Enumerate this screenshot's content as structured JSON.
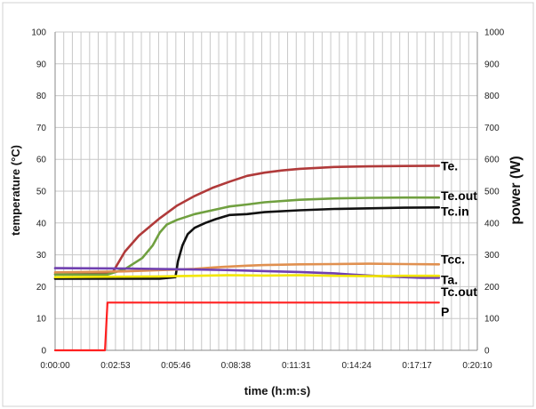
{
  "chart_data": {
    "type": "line",
    "xlabel": "time (h:m:s)",
    "ylabel": "temperature (°C)",
    "y2label": "power (W)",
    "xlim": [
      0,
      1210
    ],
    "ylim": [
      0,
      100
    ],
    "y2lim": [
      0,
      1000
    ],
    "x_tick_values": [
      0,
      173,
      346,
      518,
      691,
      864,
      1037,
      1210
    ],
    "x_tick_labels": [
      "0:00:00",
      "0:02:53",
      "0:05:46",
      "0:08:38",
      "0:11:31",
      "0:14:24",
      "0:17:17",
      "0:20:10"
    ],
    "y_ticks": [
      0,
      10,
      20,
      30,
      40,
      50,
      60,
      70,
      80,
      90,
      100
    ],
    "y2_ticks": [
      0,
      100,
      200,
      300,
      400,
      500,
      600,
      700,
      800,
      900,
      1000
    ],
    "grid": true,
    "series": [
      {
        "name": "Te.",
        "color": "#b03a3a",
        "axis": "left",
        "x": [
          0,
          165,
          200,
          240,
          300,
          350,
          400,
          450,
          500,
          550,
          600,
          650,
          700,
          800,
          900,
          1000,
          1100
        ],
        "y": [
          24,
          24.5,
          31,
          36,
          41.5,
          45.5,
          48.5,
          51,
          53,
          54.8,
          55.8,
          56.5,
          57,
          57.6,
          57.8,
          57.9,
          58
        ]
      },
      {
        "name": "Te.out",
        "color": "#70a040",
        "axis": "left",
        "x": [
          0,
          150,
          200,
          250,
          280,
          300,
          320,
          350,
          400,
          450,
          500,
          550,
          600,
          700,
          800,
          900,
          1000,
          1100
        ],
        "y": [
          23.8,
          23.8,
          25.5,
          29,
          33,
          37,
          39.5,
          41,
          42.8,
          44,
          45.2,
          45.8,
          46.5,
          47.3,
          47.7,
          47.9,
          48,
          48
        ]
      },
      {
        "name": "Tc.in",
        "color": "#111111",
        "axis": "left",
        "x": [
          0,
          300,
          345,
          352,
          365,
          380,
          400,
          430,
          460,
          500,
          550,
          600,
          700,
          800,
          900,
          1000,
          1100
        ],
        "y": [
          22.5,
          22.5,
          23,
          28,
          33,
          36.5,
          38.5,
          40,
          41.2,
          42.5,
          42.8,
          43.4,
          44,
          44.4,
          44.6,
          44.8,
          44.9
        ]
      },
      {
        "name": "Tcc.",
        "color": "#e09050",
        "axis": "left",
        "x": [
          0,
          200,
          300,
          400,
          450,
          500,
          550,
          600,
          700,
          800,
          900,
          1000,
          1100
        ],
        "y": [
          24.5,
          24.8,
          25.2,
          25.6,
          26,
          26.3,
          26.6,
          26.8,
          27,
          27.1,
          27.2,
          27.1,
          27
        ]
      },
      {
        "name": "Ta.",
        "color": "#7040b0",
        "axis": "left",
        "x": [
          0,
          200,
          400,
          500,
          600,
          700,
          800,
          850,
          900,
          950,
          1000,
          1050,
          1100
        ],
        "y": [
          25.8,
          25.7,
          25.4,
          25.2,
          24.9,
          24.6,
          24.2,
          23.8,
          23.5,
          23.2,
          23,
          22.8,
          22.8
        ]
      },
      {
        "name": "Tc.out",
        "color": "#f2e600",
        "axis": "left",
        "x": [
          0,
          300,
          400,
          500,
          600,
          700,
          800,
          900,
          1000,
          1100
        ],
        "y": [
          23,
          23.2,
          23.4,
          23.6,
          23.5,
          23.6,
          23.4,
          23.3,
          23.4,
          23.4
        ]
      },
      {
        "name": "P",
        "color": "#ff2020",
        "axis": "right",
        "x": [
          0,
          143,
          150,
          1100
        ],
        "y": [
          0,
          0,
          150,
          150
        ]
      }
    ]
  }
}
